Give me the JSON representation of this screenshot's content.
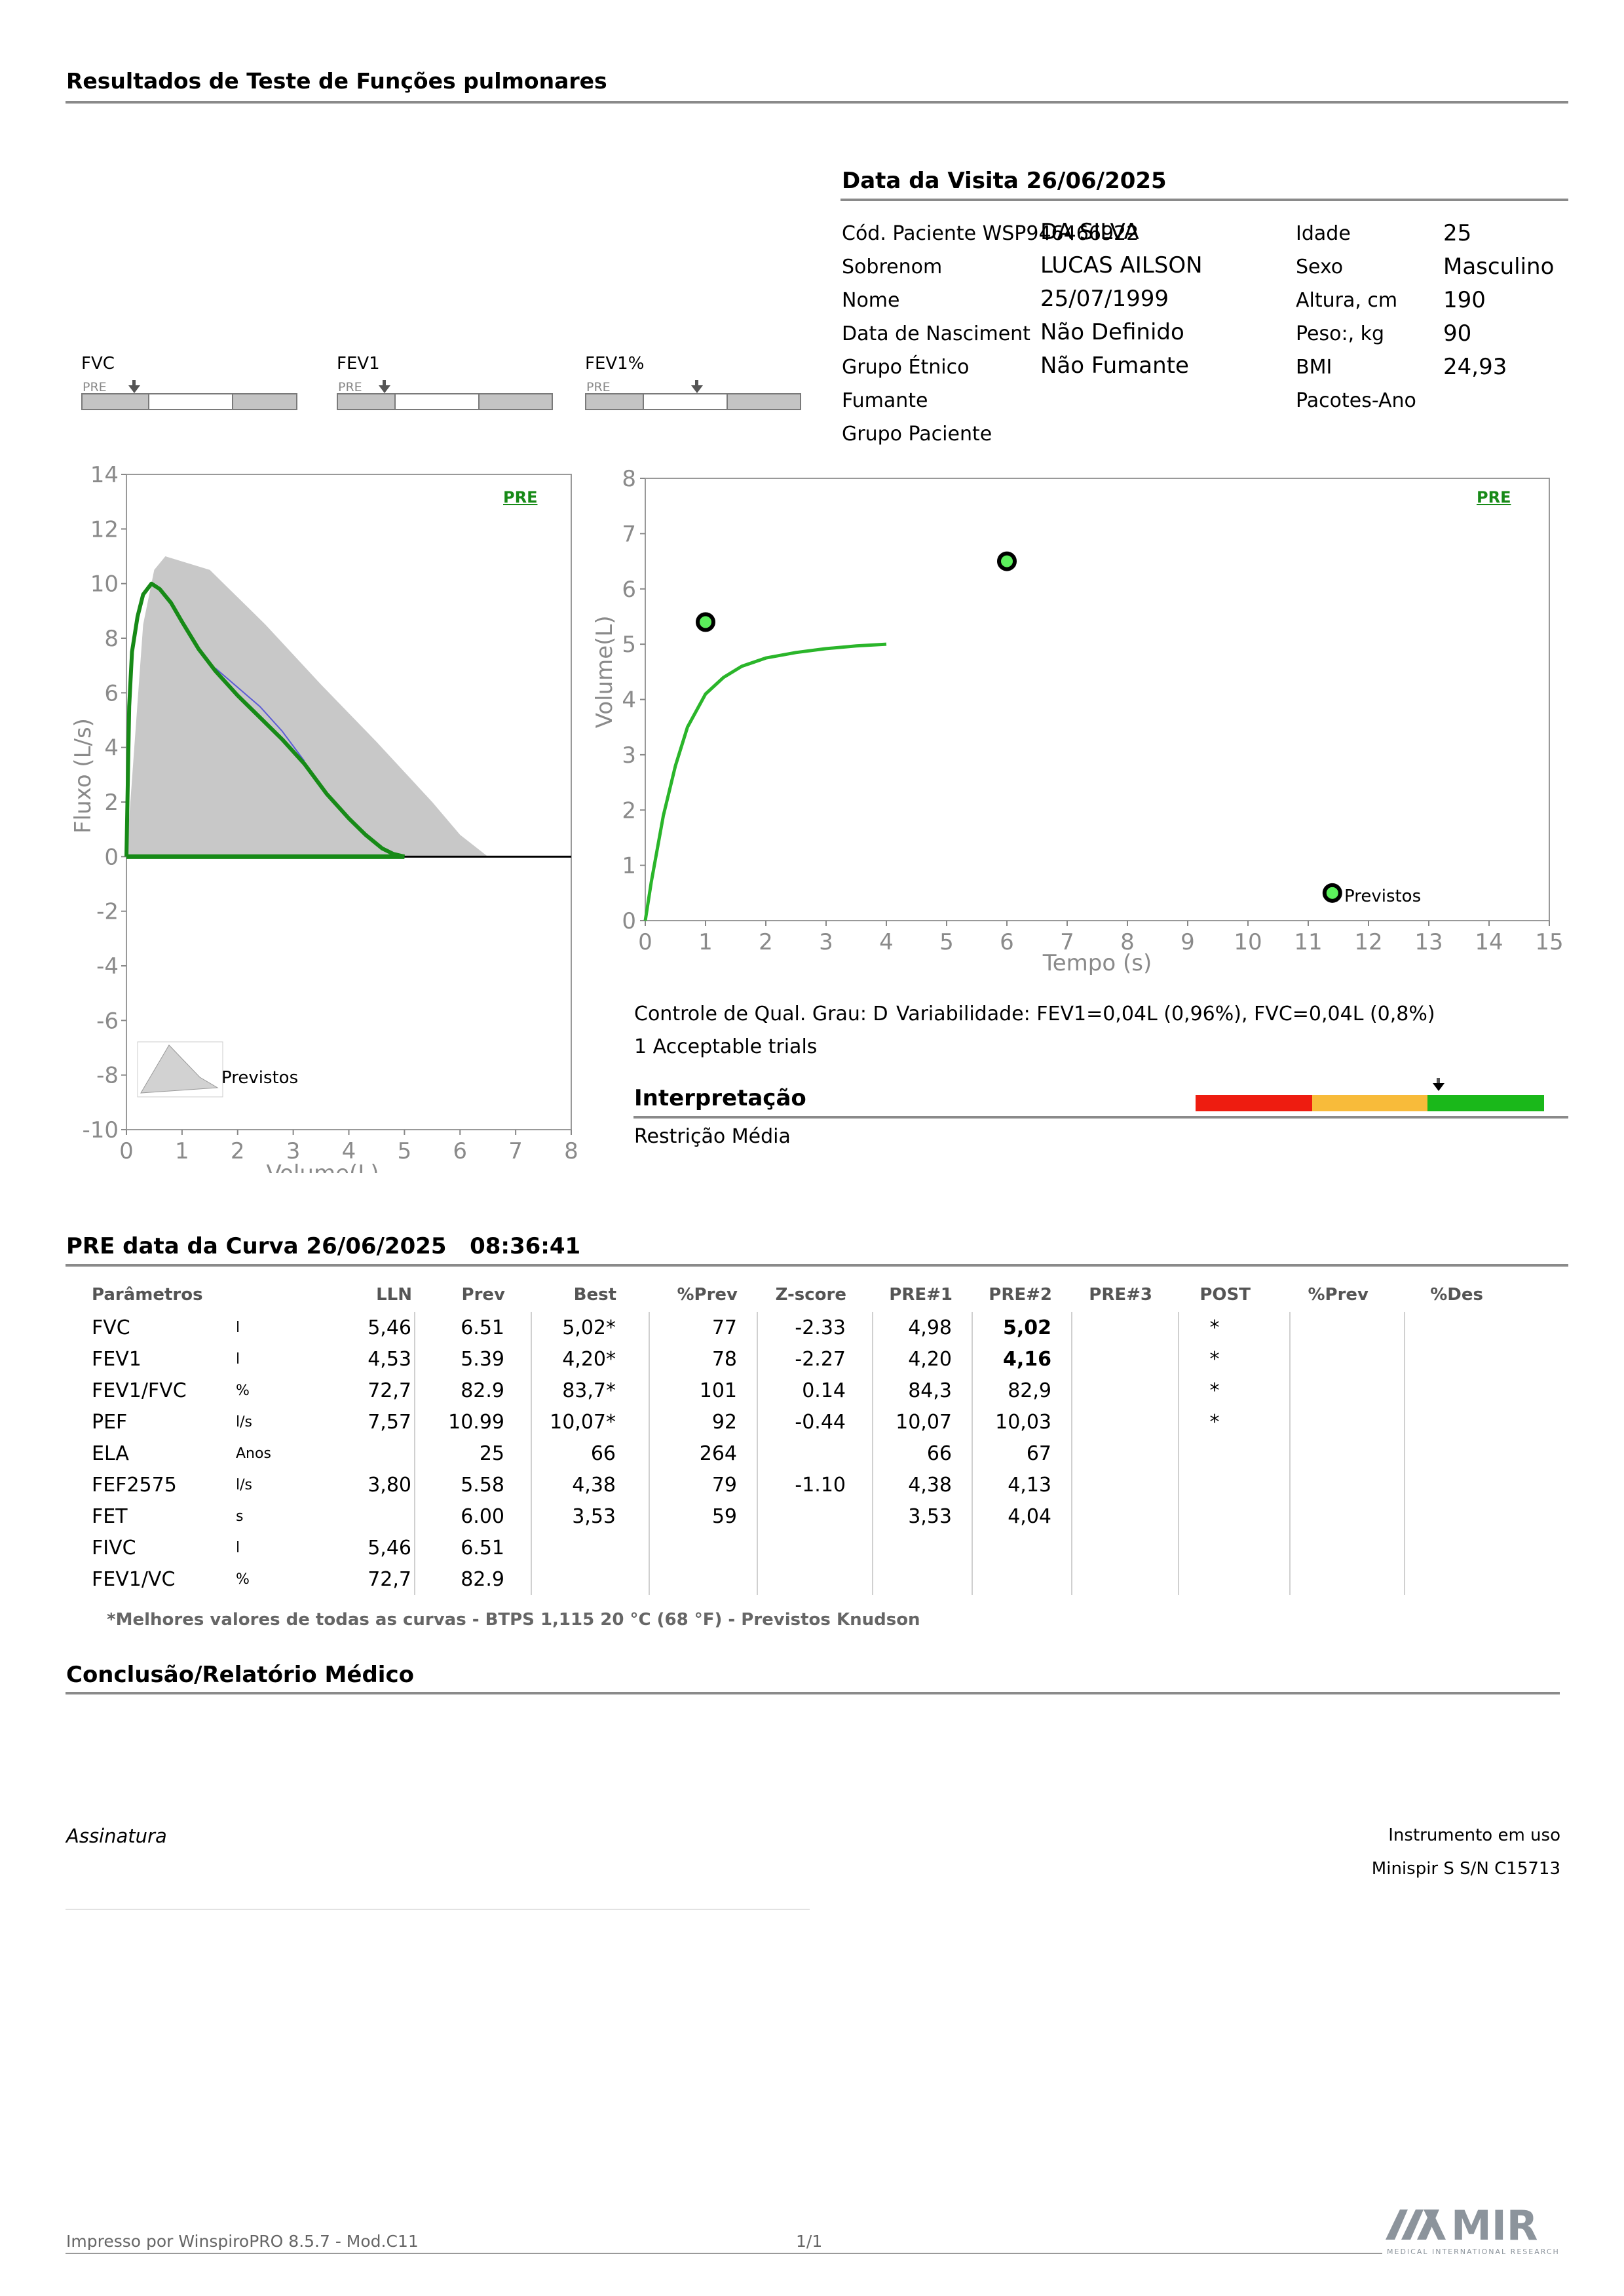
{
  "header": {
    "title": "Resultados de Teste de Funções pulmonares"
  },
  "visit": {
    "title": "Data da Visita 26/06/2025",
    "left_labels": [
      "Cód. Paciente WSP946466922",
      "Sobrenom",
      "Nome",
      "Data de Nasciment",
      "Grupo Étnico",
      "Fumante",
      "Grupo Paciente"
    ],
    "left_values": [
      "",
      "DA SILVA",
      "LUCAS AILSON",
      "25/07/1999",
      "Não Definido",
      "Não Fumante",
      ""
    ],
    "right_labels": [
      "Idade",
      "Sexo",
      "Altura, cm",
      "Peso:, kg",
      "BMI",
      "Pacotes-Ano"
    ],
    "right_values": [
      "25",
      "Masculino",
      "190",
      "90",
      "24,93",
      ""
    ]
  },
  "mini_gauges": [
    {
      "label": "FVC",
      "pre": "PRE"
    },
    {
      "label": "FEV1",
      "pre": "PRE"
    },
    {
      "label": "FEV1%",
      "pre": "PRE"
    }
  ],
  "flow_chart": {
    "tag": "PRE",
    "legend": "Previstos"
  },
  "time_chart": {
    "tag": "PRE",
    "legend": "Previstos"
  },
  "chart_data": [
    {
      "type": "area",
      "name_hint": "flow-volume",
      "xlabel": "Volume(L)",
      "ylabel": "Fluxo (L/s)",
      "xlim": [
        0,
        8
      ],
      "ylim": [
        -10,
        14
      ],
      "x_ticks": [
        "0",
        "1",
        "2",
        "3",
        "4",
        "5",
        "6",
        "7",
        "8"
      ],
      "y_ticks": [
        "14",
        "12",
        "10",
        "8",
        "6",
        "4",
        "2",
        "0",
        "-2",
        "-4",
        "-6",
        "-8",
        "-10"
      ],
      "series": [
        {
          "name": "Previstos",
          "color": "#c8c8c8",
          "x": [
            0,
            0.3,
            0.5,
            0.7,
            1.5,
            2.5,
            3.5,
            4.5,
            5.5,
            6.0,
            6.5,
            0
          ],
          "y": [
            0,
            8.5,
            10.5,
            11.0,
            10.5,
            8.5,
            6.3,
            4.2,
            2.0,
            0.8,
            0,
            0
          ]
        },
        {
          "name": "PRE#2",
          "color": "#178a17",
          "x": [
            0,
            0.05,
            0.1,
            0.2,
            0.3,
            0.45,
            0.6,
            0.8,
            1.0,
            1.3,
            1.6,
            2.0,
            2.4,
            2.8,
            3.2,
            3.6,
            4.0,
            4.3,
            4.6,
            4.8,
            5.0
          ],
          "y": [
            0,
            5.5,
            7.5,
            8.8,
            9.6,
            10.0,
            9.8,
            9.3,
            8.6,
            7.6,
            6.8,
            5.9,
            5.1,
            4.3,
            3.4,
            2.3,
            1.4,
            0.8,
            0.3,
            0.1,
            0
          ]
        },
        {
          "name": "PRE#1",
          "color": "#5b5bd6",
          "x": [
            1.6,
            2.0,
            2.4,
            2.8,
            3.2
          ],
          "y": [
            6.9,
            6.2,
            5.5,
            4.6,
            3.5
          ]
        }
      ]
    },
    {
      "type": "line",
      "name_hint": "volume-time",
      "xlabel": "Tempo (s)",
      "ylabel": "Volume(L)",
      "xlim": [
        0,
        15
      ],
      "ylim": [
        0,
        8
      ],
      "x_ticks": [
        "0",
        "1",
        "2",
        "3",
        "4",
        "5",
        "6",
        "7",
        "8",
        "9",
        "10",
        "11",
        "12",
        "13",
        "14",
        "15"
      ],
      "y_ticks": [
        "8",
        "7",
        "6",
        "5",
        "4",
        "3",
        "2",
        "1",
        "0"
      ],
      "series": [
        {
          "name": "PRE#2",
          "color": "#2ab52a",
          "x": [
            0,
            0.1,
            0.2,
            0.3,
            0.5,
            0.7,
            1.0,
            1.3,
            1.6,
            2.0,
            2.5,
            3.0,
            3.5,
            4.0
          ],
          "y": [
            0,
            0.7,
            1.3,
            1.9,
            2.8,
            3.5,
            4.1,
            4.4,
            4.6,
            4.75,
            4.85,
            4.92,
            4.97,
            5.0
          ]
        }
      ],
      "points": [
        {
          "x": 1.0,
          "y": 5.4
        },
        {
          "x": 6.0,
          "y": 6.5
        },
        {
          "x": 11.4,
          "y": 0.5,
          "label": "Previstos"
        }
      ]
    }
  ],
  "quality": {
    "grade": "Controle de Qual. Grau: D",
    "variability": "Variabilidade: FEV1=0,04L (0,96%), FVC=0,04L (0,8%)",
    "trials": "1 Acceptable trials"
  },
  "interpretation": {
    "title": "Interpretação",
    "text": "Restrição Média",
    "scale_colors": [
      "#ee1c10",
      "#f8bb3a",
      "#1ab81a"
    ]
  },
  "curve": {
    "title": "PRE data da Curva 26/06/2025   08:36:41"
  },
  "table": {
    "headers": [
      "Parâmetros",
      "",
      "LLN",
      "Prev",
      "Best",
      "%Prev",
      "Z-score",
      "PRE#1",
      "PRE#2",
      "PRE#3",
      "POST",
      "%Prev",
      "%Des"
    ],
    "rows": [
      [
        "FVC",
        "l",
        "5,46",
        "6.51",
        "5,02*",
        "77",
        "-2.33",
        "4,98",
        "5,02",
        "",
        "*",
        "",
        ""
      ],
      [
        "FEV1",
        "l",
        "4,53",
        "5.39",
        "4,20*",
        "78",
        "-2.27",
        "4,20",
        "4,16",
        "",
        "*",
        "",
        ""
      ],
      [
        "FEV1/FVC",
        "%",
        "72,7",
        "82.9",
        "83,7*",
        "101",
        "0.14",
        "84,3",
        "82,9",
        "",
        "*",
        "",
        ""
      ],
      [
        "PEF",
        "l/s",
        "7,57",
        "10.99",
        "10,07*",
        "92",
        "-0.44",
        "10,07",
        "10,03",
        "",
        "*",
        "",
        ""
      ],
      [
        "ELA",
        "Anos",
        "",
        "25",
        "66",
        "264",
        "",
        "66",
        "67",
        "",
        "",
        "",
        ""
      ],
      [
        "FEF2575",
        "l/s",
        "3,80",
        "5.58",
        "4,38",
        "79",
        "-1.10",
        "4,38",
        "4,13",
        "",
        "",
        "",
        ""
      ],
      [
        "FET",
        "s",
        "",
        "6.00",
        "3,53",
        "59",
        "",
        "3,53",
        "4,04",
        "",
        "",
        "",
        ""
      ],
      [
        "FIVC",
        "l",
        "5,46",
        "6.51",
        "",
        "",
        "",
        "",
        "",
        "",
        "",
        "",
        ""
      ],
      [
        "FEV1/VC",
        "%",
        "72,7",
        "82.9",
        "",
        "",
        "",
        "",
        "",
        "",
        "",
        "",
        ""
      ]
    ],
    "footnote": "*Melhores valores de todas as curvas - BTPS  1,115  20 °C  (68 °F) - Previstos Knudson"
  },
  "conclusion": {
    "title": "Conclusão/Relatório Médico",
    "signature": "Assinatura",
    "instrument_label": "Instrumento em uso",
    "instrument_value": "Minispir S S/N C15713"
  },
  "footer": {
    "printed_by": "Impresso por WinspiroPRO  8.5.7 - Mod.C11",
    "page": "1/1",
    "logo_text": "MIR",
    "logo_sub": "MEDICAL INTERNATIONAL RESEARCH"
  }
}
